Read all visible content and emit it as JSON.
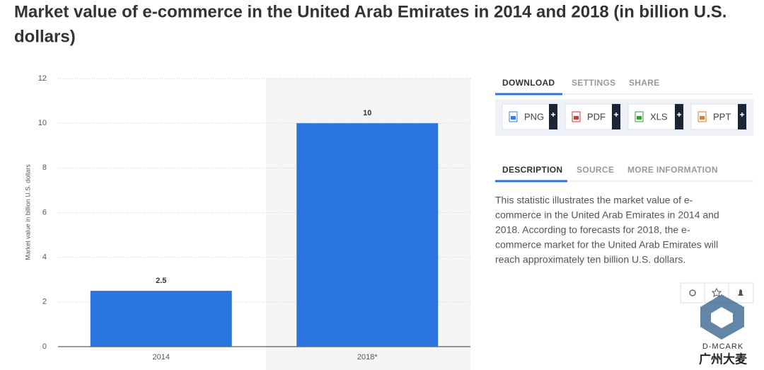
{
  "chart_data": {
    "type": "bar",
    "title": "Market value of e-commerce in the United Arab Emirates in 2014 and 2018 (in billion U.S. dollars)",
    "y_label": "Market value in billion U.S. dollars",
    "categories": [
      "2014",
      "2018*"
    ],
    "values": [
      2.5,
      10
    ],
    "color": "#2876dd",
    "ylim": [
      0,
      12
    ],
    "yticks": [
      0,
      2,
      4,
      6,
      8,
      10,
      12
    ],
    "grid": true
  },
  "panel": {
    "download_tabs": [
      "DOWNLOAD",
      "SETTINGS",
      "SHARE"
    ],
    "buttons": [
      "PNG",
      "PDF",
      "XLS",
      "PPT"
    ],
    "info_tabs": [
      "DESCRIPTION",
      "SOURCE",
      "MORE INFORMATION"
    ],
    "description": [
      "This statistic illustrates the market value of e-",
      "commerce in the United Arab Emirates in 2014 and",
      "2018. According to forecasts for 2018, the e-",
      "commerce market for the United Arab Emirates will",
      "reach approximately ten billion U.S. dollars."
    ]
  },
  "watermark": {
    "brand": "D-MCARK",
    "name": "广州大麦"
  }
}
